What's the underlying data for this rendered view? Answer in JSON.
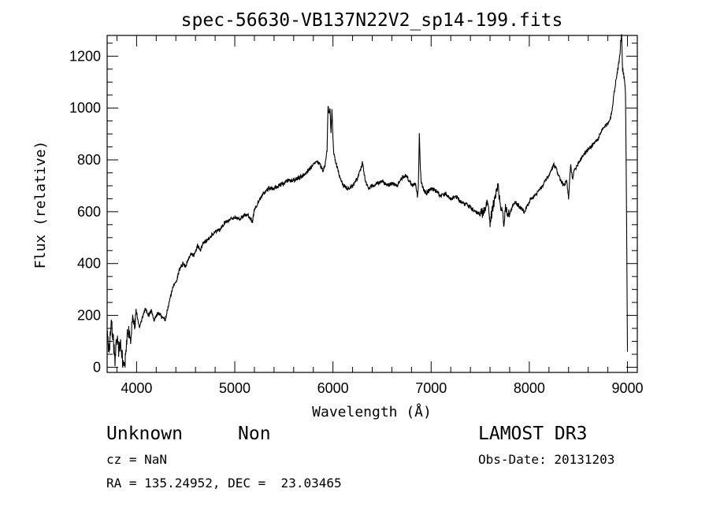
{
  "chart_data": {
    "type": "line",
    "title": "spec-56630-VB137N22V2_sp14-199.fits",
    "xlabel": "Wavelength (Å)",
    "ylabel": "Flux (relative)",
    "xlim": [
      3700,
      9100
    ],
    "ylim": [
      -20,
      1280
    ],
    "xticks": [
      4000,
      5000,
      6000,
      7000,
      8000,
      9000
    ],
    "yticks": [
      0,
      200,
      400,
      600,
      800,
      1000,
      1200
    ],
    "grid": false,
    "series": [
      {
        "x": [
          3700,
          3720,
          3740,
          3760,
          3780,
          3800,
          3820,
          3840,
          3860,
          3880,
          3900,
          3920,
          3940,
          3960,
          3980,
          4000,
          4030,
          4060,
          4090,
          4120,
          4150,
          4180,
          4200,
          4230,
          4260,
          4290,
          4320,
          4350,
          4380,
          4410,
          4440,
          4470,
          4500,
          4530,
          4560,
          4590,
          4620,
          4650,
          4680,
          4720,
          4760,
          4800,
          4850,
          4900,
          4950,
          5000,
          5050,
          5100,
          5150,
          5180,
          5200,
          5220,
          5240,
          5260,
          5290,
          5320,
          5350,
          5400,
          5450,
          5500,
          5550,
          5600,
          5650,
          5700,
          5750,
          5800,
          5830,
          5860,
          5880,
          5900,
          5920,
          5940,
          5950,
          5960,
          5970,
          5980,
          5990,
          6000,
          6010,
          6030,
          6050,
          6080,
          6110,
          6150,
          6200,
          6250,
          6280,
          6300,
          6330,
          6360,
          6400,
          6450,
          6500,
          6550,
          6600,
          6650,
          6700,
          6750,
          6800,
          6840,
          6860,
          6870,
          6880,
          6890,
          6900,
          6920,
          6950,
          7000,
          7050,
          7100,
          7150,
          7200,
          7250,
          7300,
          7350,
          7400,
          7450,
          7500,
          7540,
          7580,
          7600,
          7630,
          7650,
          7680,
          7700,
          7720,
          7740,
          7760,
          7780,
          7800,
          7850,
          7900,
          7950,
          8000,
          8050,
          8100,
          8150,
          8200,
          8250,
          8280,
          8300,
          8320,
          8350,
          8380,
          8400,
          8420,
          8440,
          8460,
          8500,
          8550,
          8600,
          8650,
          8700,
          8750,
          8800,
          8820,
          8840,
          8860,
          8880,
          8900,
          8910,
          8920,
          8930,
          8940,
          8950,
          8960,
          8970,
          8980,
          8990,
          9000
        ],
        "y": [
          120,
          60,
          180,
          110,
          30,
          130,
          60,
          90,
          20,
          10,
          110,
          150,
          90,
          190,
          170,
          210,
          150,
          190,
          230,
          200,
          220,
          180,
          200,
          210,
          190,
          180,
          230,
          280,
          320,
          340,
          380,
          400,
          390,
          420,
          440,
          430,
          470,
          450,
          480,
          490,
          510,
          520,
          530,
          560,
          570,
          580,
          570,
          590,
          580,
          560,
          610,
          620,
          640,
          650,
          670,
          680,
          690,
          690,
          700,
          710,
          720,
          720,
          730,
          740,
          760,
          780,
          790,
          790,
          770,
          760,
          780,
          840,
          1010,
          980,
          1000,
          900,
          1000,
          880,
          820,
          790,
          760,
          720,
          700,
          690,
          700,
          730,
          760,
          790,
          720,
          690,
          700,
          710,
          720,
          700,
          710,
          700,
          730,
          740,
          700,
          710,
          660,
          700,
          900,
          760,
          710,
          690,
          670,
          690,
          680,
          660,
          670,
          650,
          660,
          640,
          630,
          620,
          600,
          590,
          600,
          640,
          560,
          620,
          650,
          700,
          640,
          600,
          560,
          620,
          600,
          590,
          640,
          620,
          600,
          640,
          660,
          680,
          710,
          740,
          780,
          760,
          740,
          720,
          700,
          720,
          650,
          780,
          730,
          760,
          790,
          820,
          840,
          860,
          880,
          920,
          940,
          960,
          980,
          1050,
          1100,
          1150,
          1170,
          1200,
          1250,
          1280,
          1150,
          1130,
          1100,
          1050,
          600,
          60
        ]
      }
    ]
  },
  "info": {
    "class_text": "Unknown",
    "subclass_text": "Non",
    "survey_text": "LAMOST DR3",
    "cz_text": "cz = NaN",
    "obsdate_text": "Obs-Date: 20131203",
    "radec_text": "RA = 135.24952, DEC =  23.03465"
  }
}
